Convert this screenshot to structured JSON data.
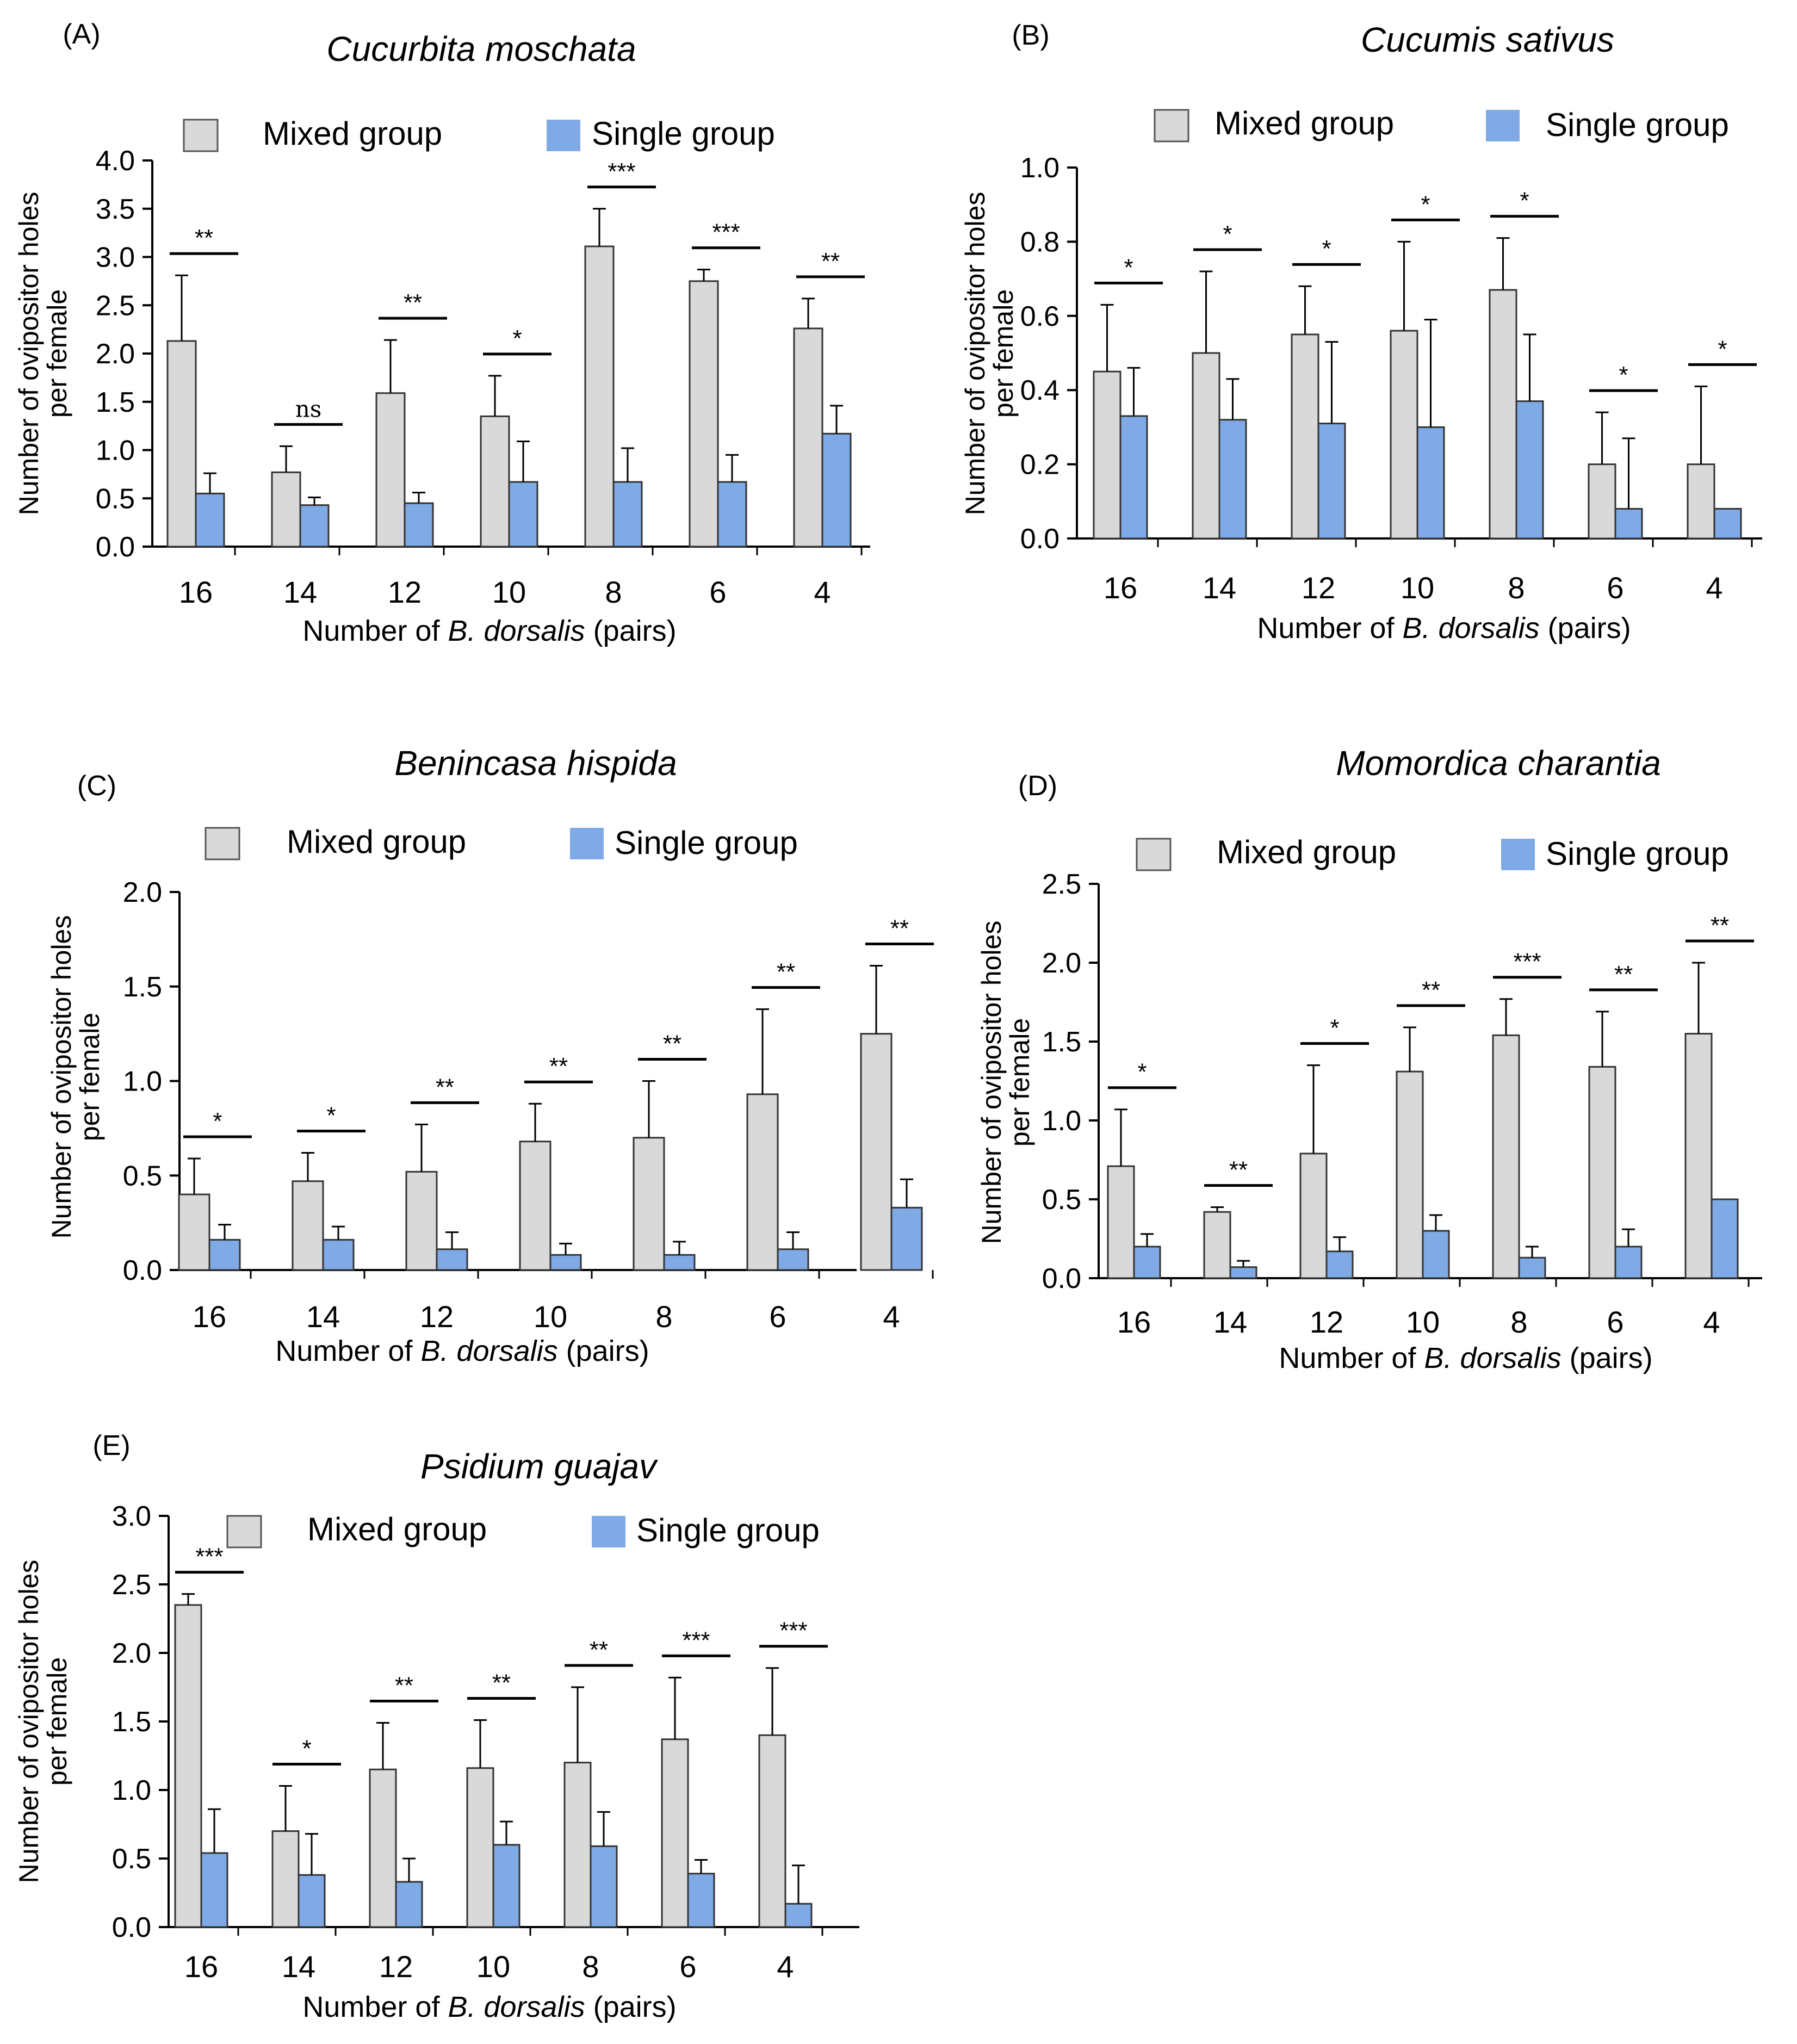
{
  "legend": {
    "mixed_label": "Mixed group",
    "single_label": "Single group"
  },
  "colors": {
    "mixed": "#d9d9d9",
    "single": "#7faae6",
    "axis": "#000000"
  },
  "chart_data": [
    {
      "panel": "(A)",
      "type": "bar",
      "title": "Cucurbita moschata",
      "xlabel_prefix": "Number of ",
      "xlabel_italic": "B. dorsalis",
      "xlabel_suffix": " (pairs)",
      "ylabel_line1": "Number of ovipositor holes",
      "ylabel_line2": "per female",
      "categories": [
        "16",
        "14",
        "12",
        "10",
        "8",
        "6",
        "4"
      ],
      "yticks": [
        "0.0",
        "0.5",
        "1.0",
        "1.5",
        "2.0",
        "2.5",
        "3.0",
        "3.5",
        "4.0"
      ],
      "ylim": [
        0,
        4.0
      ],
      "series": [
        {
          "name": "Mixed group",
          "values": [
            2.13,
            0.77,
            1.59,
            1.35,
            3.11,
            2.75,
            2.26
          ],
          "errors": [
            0.68,
            0.27,
            0.55,
            0.42,
            0.39,
            0.12,
            0.31
          ]
        },
        {
          "name": "Single group",
          "values": [
            0.55,
            0.43,
            0.45,
            0.67,
            0.67,
            0.67,
            1.17
          ],
          "errors": [
            0.21,
            0.08,
            0.11,
            0.42,
            0.35,
            0.28,
            0.29
          ]
        }
      ],
      "significance": [
        "**",
        "ns",
        "**",
        "*",
        "***",
        "***",
        "**"
      ]
    },
    {
      "panel": "(B)",
      "type": "bar",
      "title": "Cucumis sativus",
      "xlabel_prefix": "Number of ",
      "xlabel_italic": "B. dorsalis",
      "xlabel_suffix": " (pairs)",
      "ylabel_line1": "Number of ovipositor holes",
      "ylabel_line2": "per female",
      "categories": [
        "16",
        "14",
        "12",
        "10",
        "8",
        "6",
        "4"
      ],
      "yticks": [
        "0.0",
        "0.2",
        "0.4",
        "0.6",
        "0.8",
        "1.0"
      ],
      "ylim": [
        0,
        1.0
      ],
      "series": [
        {
          "name": "Mixed group",
          "values": [
            0.45,
            0.5,
            0.55,
            0.56,
            0.67,
            0.2,
            0.2
          ],
          "errors": [
            0.18,
            0.22,
            0.13,
            0.24,
            0.14,
            0.14,
            0.21
          ]
        },
        {
          "name": "Single group",
          "values": [
            0.33,
            0.32,
            0.31,
            0.3,
            0.37,
            0.08,
            0.08
          ],
          "errors": [
            0.13,
            0.11,
            0.22,
            0.29,
            0.18,
            0.19,
            0.0
          ]
        }
      ],
      "significance": [
        "*",
        "*",
        "*",
        "*",
        "*",
        "*",
        "*"
      ]
    },
    {
      "panel": "(C)",
      "type": "bar",
      "title": "Benincasa hispida",
      "xlabel_prefix": "Number of ",
      "xlabel_italic": "B. dorsalis",
      "xlabel_suffix": " (pairs)",
      "ylabel_line1": "Number of ovipositor holes",
      "ylabel_line2": "per female",
      "categories": [
        "16",
        "14",
        "12",
        "10",
        "8",
        "6",
        "4"
      ],
      "yticks": [
        "0.0",
        "0.5",
        "1.0",
        "1.5",
        "2.0"
      ],
      "ylim": [
        0,
        2.0
      ],
      "series": [
        {
          "name": "Mixed group",
          "values": [
            0.4,
            0.47,
            0.52,
            0.68,
            0.7,
            0.93,
            1.25
          ],
          "errors": [
            0.19,
            0.15,
            0.25,
            0.2,
            0.3,
            0.45,
            0.36
          ]
        },
        {
          "name": "Single group",
          "values": [
            0.16,
            0.16,
            0.11,
            0.08,
            0.08,
            0.11,
            0.33
          ],
          "errors": [
            0.08,
            0.07,
            0.09,
            0.06,
            0.07,
            0.09,
            0.15
          ]
        }
      ],
      "significance": [
        "*",
        "*",
        "**",
        "**",
        "**",
        "**",
        "**"
      ]
    },
    {
      "panel": "(D)",
      "type": "bar",
      "title": "Momordica charantia",
      "xlabel_prefix": "Number of ",
      "xlabel_italic": "B. dorsalis",
      "xlabel_suffix": " (pairs)",
      "ylabel_line1": "Number of ovipositor holes",
      "ylabel_line2": "per female",
      "categories": [
        "16",
        "14",
        "12",
        "10",
        "8",
        "6",
        "4"
      ],
      "yticks": [
        "0.0",
        "0.5",
        "1.0",
        "1.5",
        "2.0",
        "2.5"
      ],
      "ylim": [
        0,
        2.5
      ],
      "series": [
        {
          "name": "Mixed group",
          "values": [
            0.71,
            0.42,
            0.79,
            1.31,
            1.54,
            1.34,
            1.55
          ],
          "errors": [
            0.36,
            0.03,
            0.56,
            0.28,
            0.23,
            0.35,
            0.45
          ]
        },
        {
          "name": "Single group",
          "values": [
            0.2,
            0.07,
            0.17,
            0.3,
            0.13,
            0.2,
            0.5
          ],
          "errors": [
            0.08,
            0.04,
            0.09,
            0.1,
            0.07,
            0.11,
            0.0
          ]
        }
      ],
      "significance": [
        "*",
        "**",
        "*",
        "**",
        "***",
        "**",
        "**"
      ]
    },
    {
      "panel": "(E)",
      "type": "bar",
      "title": "Psidium guajav",
      "xlabel_prefix": "Number of ",
      "xlabel_italic": "B. dorsalis",
      "xlabel_suffix": " (pairs)",
      "ylabel_line1": "Number of ovipositor holes",
      "ylabel_line2": "per female",
      "categories": [
        "16",
        "14",
        "12",
        "10",
        "8",
        "6",
        "4"
      ],
      "yticks": [
        "0.0",
        "0.5",
        "1.0",
        "1.5",
        "2.0",
        "2.5",
        "3.0"
      ],
      "ylim": [
        0,
        3.0
      ],
      "series": [
        {
          "name": "Mixed group",
          "values": [
            2.35,
            0.7,
            1.15,
            1.16,
            1.2,
            1.37,
            1.4
          ],
          "errors": [
            0.08,
            0.33,
            0.34,
            0.35,
            0.55,
            0.45,
            0.49
          ]
        },
        {
          "name": "Single group",
          "values": [
            0.54,
            0.38,
            0.33,
            0.6,
            0.59,
            0.39,
            0.17
          ],
          "errors": [
            0.32,
            0.3,
            0.17,
            0.17,
            0.25,
            0.1,
            0.28
          ]
        }
      ],
      "significance": [
        "***",
        "*",
        "**",
        "**",
        "**",
        "***",
        "***"
      ]
    }
  ]
}
